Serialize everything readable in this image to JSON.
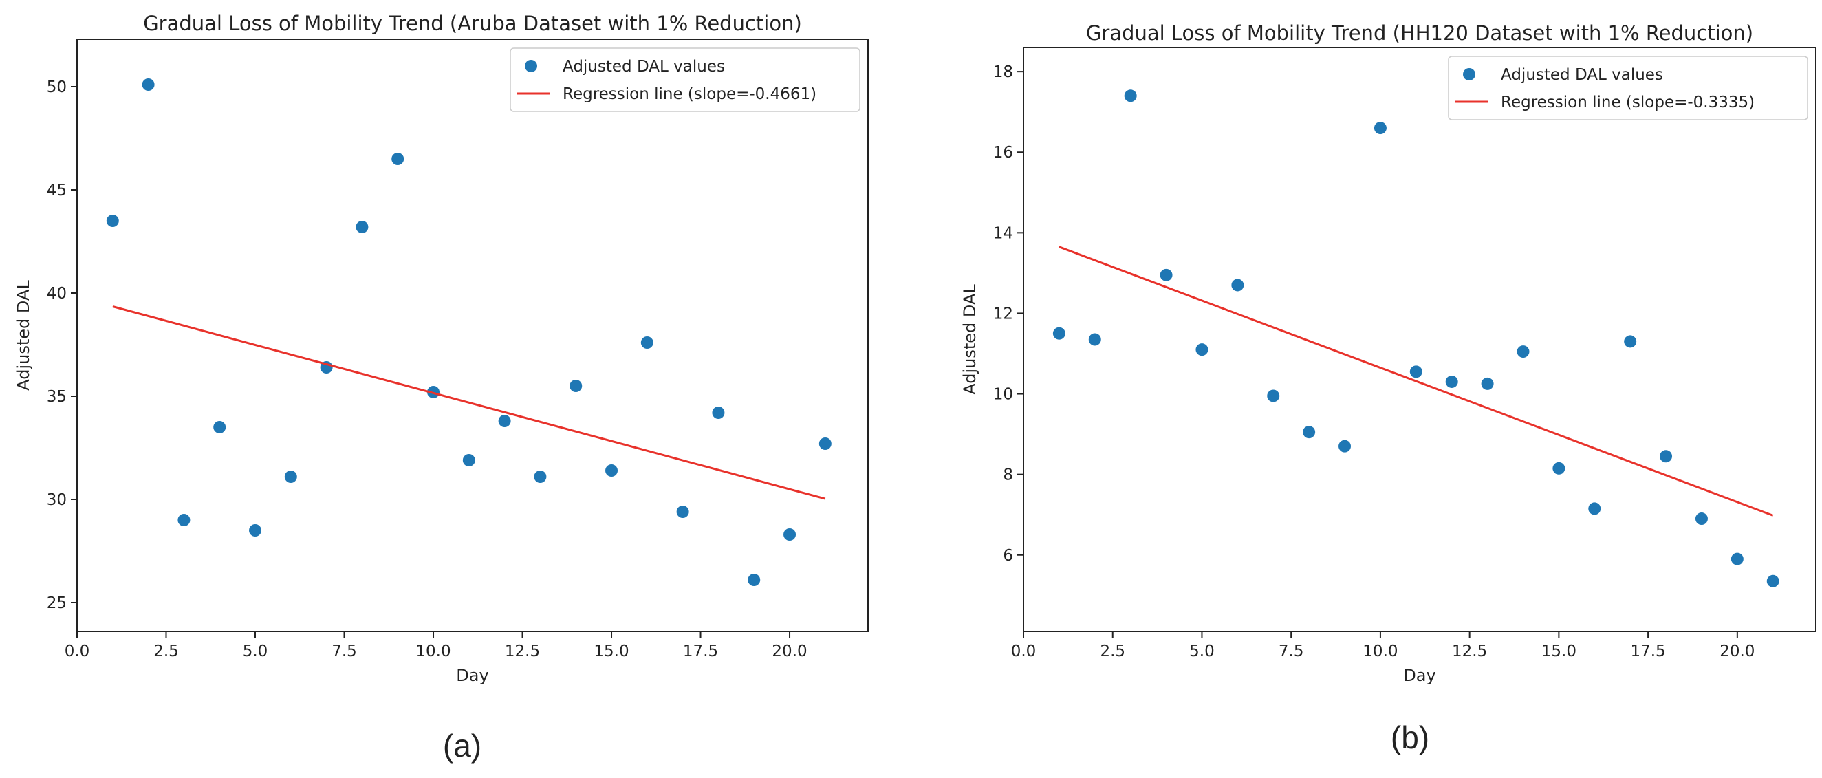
{
  "figure": {
    "panels": [
      {
        "caption": "(a)"
      },
      {
        "caption": "(b)"
      }
    ]
  },
  "colors": {
    "scatter": "#1f77b4",
    "regression": "#e8322b",
    "axis": "#222222"
  },
  "chart_data": [
    {
      "type": "scatter",
      "title": "Gradual Loss of Mobility Trend (Aruba Dataset with 1% Reduction)",
      "xlabel": "Day",
      "ylabel": "Adjusted DAL",
      "xlim": [
        0.0,
        22.2
      ],
      "ylim": [
        23.6,
        52.3
      ],
      "xticks": [
        0.0,
        2.5,
        5.0,
        7.5,
        10.0,
        12.5,
        15.0,
        17.5,
        20.0
      ],
      "xtick_labels": [
        "0.0",
        "2.5",
        "5.0",
        "7.5",
        "10.0",
        "12.5",
        "15.0",
        "17.5",
        "20.0"
      ],
      "yticks": [
        25,
        30,
        35,
        40,
        45,
        50
      ],
      "ytick_labels": [
        "25",
        "30",
        "35",
        "40",
        "45",
        "50"
      ],
      "legend_position": "top-right",
      "series": [
        {
          "name": "Adjusted DAL values",
          "kind": "scatter",
          "x": [
            1,
            2,
            3,
            4,
            5,
            6,
            7,
            8,
            9,
            10,
            11,
            12,
            13,
            14,
            15,
            16,
            17,
            18,
            19,
            20,
            21
          ],
          "y": [
            43.5,
            50.1,
            29.0,
            33.5,
            28.5,
            31.1,
            36.4,
            43.2,
            46.5,
            35.2,
            31.9,
            33.8,
            31.1,
            35.5,
            31.4,
            37.6,
            29.4,
            34.2,
            26.1,
            28.3,
            32.7
          ]
        },
        {
          "name": "Regression line (slope=-0.4661)",
          "kind": "line",
          "x": [
            1,
            21
          ],
          "y": [
            39.35,
            30.03
          ]
        }
      ]
    },
    {
      "type": "scatter",
      "title": "Gradual Loss of Mobility Trend (HH120 Dataset with 1% Reduction)",
      "xlabel": "Day",
      "ylabel": "Adjusted DAL",
      "xlim": [
        0.0,
        22.2
      ],
      "ylim": [
        4.1,
        18.6
      ],
      "xticks": [
        0.0,
        2.5,
        5.0,
        7.5,
        10.0,
        12.5,
        15.0,
        17.5,
        20.0
      ],
      "xtick_labels": [
        "0.0",
        "2.5",
        "5.0",
        "7.5",
        "10.0",
        "12.5",
        "15.0",
        "17.5",
        "20.0"
      ],
      "yticks": [
        6,
        8,
        10,
        12,
        14,
        16,
        18
      ],
      "ytick_labels": [
        "6",
        "8",
        "10",
        "12",
        "14",
        "16",
        "18"
      ],
      "legend_position": "top-right",
      "series": [
        {
          "name": "Adjusted DAL values",
          "kind": "scatter",
          "x": [
            1,
            2,
            3,
            4,
            5,
            6,
            7,
            8,
            9,
            10,
            11,
            12,
            13,
            14,
            15,
            16,
            17,
            18,
            19,
            20,
            21
          ],
          "y": [
            11.5,
            11.35,
            17.4,
            12.95,
            11.1,
            12.7,
            9.95,
            9.05,
            8.7,
            16.6,
            10.55,
            10.3,
            10.25,
            11.05,
            8.15,
            7.15,
            11.3,
            8.45,
            6.9,
            5.9,
            5.35
          ]
        },
        {
          "name": "Regression line (slope=-0.3335)",
          "kind": "line",
          "x": [
            1,
            21
          ],
          "y": [
            13.65,
            6.98
          ]
        }
      ]
    }
  ]
}
